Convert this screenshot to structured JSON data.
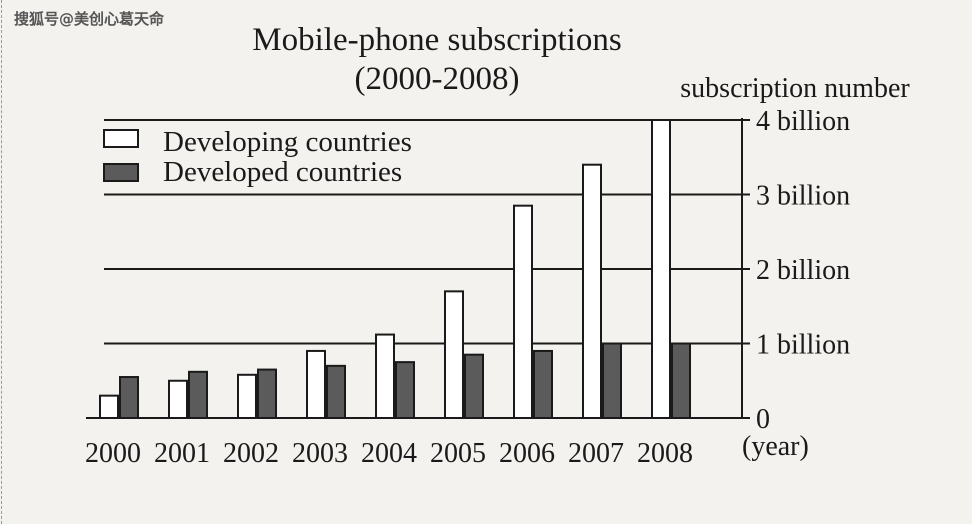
{
  "watermark": "搜狐号@美创心葛天命",
  "colors": {
    "background": "#f4f2ef",
    "developing_fill": "#ffffff",
    "developed_fill": "#5b5b5b",
    "ink": "#1a1a1a"
  },
  "chart_data": {
    "type": "bar",
    "title": "Mobile-phone subscriptions",
    "subtitle": "(2000-2008)",
    "ylabel": "subscription number",
    "xlabel": "(year)",
    "categories": [
      "2000",
      "2001",
      "2002",
      "2003",
      "2004",
      "2005",
      "2006",
      "2007",
      "2008"
    ],
    "series": [
      {
        "name": "Developing countries",
        "values": [
          0.3,
          0.5,
          0.58,
          0.9,
          1.12,
          1.7,
          2.85,
          3.4,
          4.0
        ]
      },
      {
        "name": "Developed countries",
        "values": [
          0.55,
          0.62,
          0.65,
          0.7,
          0.75,
          0.85,
          0.9,
          1.0,
          1.0
        ]
      }
    ],
    "yticks": [
      {
        "value": 0,
        "label": "0"
      },
      {
        "value": 1,
        "label": "1 billion"
      },
      {
        "value": 2,
        "label": "2 billion"
      },
      {
        "value": 3,
        "label": "3 billion"
      },
      {
        "value": 4,
        "label": "4 billion"
      }
    ],
    "ylim": [
      0,
      4
    ],
    "grid": true,
    "legend_position": "top-left"
  }
}
